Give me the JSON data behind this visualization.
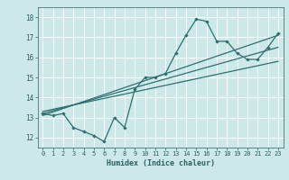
{
  "title": "",
  "xlabel": "Humidex (Indice chaleur)",
  "bg_color": "#cce8e8",
  "grid_color": "#ffffff",
  "line_color": "#2d7070",
  "xlim": [
    -0.5,
    23.5
  ],
  "ylim": [
    11.5,
    18.5
  ],
  "xticks": [
    0,
    1,
    2,
    3,
    4,
    5,
    6,
    7,
    8,
    9,
    10,
    11,
    12,
    13,
    14,
    15,
    16,
    17,
    18,
    19,
    20,
    21,
    22,
    23
  ],
  "yticks": [
    12,
    13,
    14,
    15,
    16,
    17,
    18
  ],
  "line1_x": [
    0,
    1,
    2,
    3,
    4,
    5,
    6,
    7,
    8,
    9,
    10,
    11,
    12,
    13,
    14,
    15,
    16,
    17,
    18,
    19,
    20,
    21,
    22,
    23
  ],
  "line1_y": [
    13.2,
    13.1,
    13.2,
    12.5,
    12.3,
    12.1,
    11.8,
    13.0,
    12.5,
    14.4,
    15.0,
    15.0,
    15.2,
    16.2,
    17.1,
    17.9,
    17.8,
    16.8,
    16.8,
    16.2,
    15.9,
    15.9,
    16.5,
    17.2
  ],
  "line2_x": [
    0,
    23
  ],
  "line2_y": [
    13.1,
    17.1
  ],
  "line3_x": [
    0,
    23
  ],
  "line3_y": [
    13.2,
    16.5
  ],
  "line4_x": [
    0,
    23
  ],
  "line4_y": [
    13.3,
    15.8
  ]
}
